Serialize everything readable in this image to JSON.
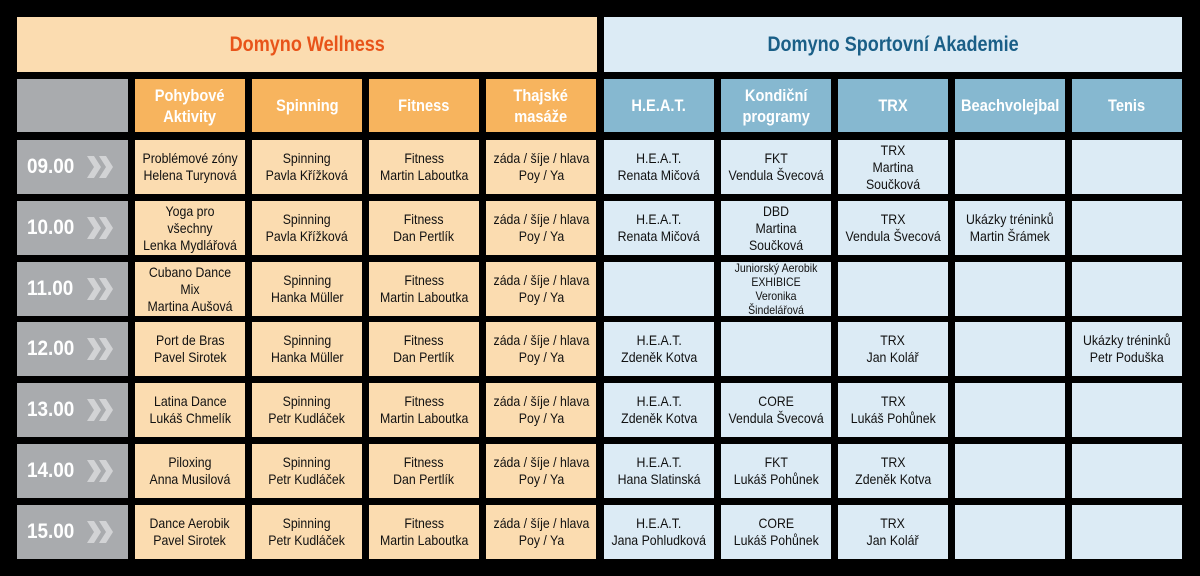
{
  "header": {
    "wellness": "Domyno Wellness",
    "akademie": "Domyno Sportovní Akademie"
  },
  "columns": [
    "Pohybové\nAktivity",
    "Spinning",
    "Fitness",
    "Thajské\nmasáže",
    "H.E.A.T.",
    "Kondiční\nprogramy",
    "TRX",
    "Beachvolejbal",
    "Tenis"
  ],
  "rows": [
    {
      "time": "09.00",
      "cells": [
        "Problémové zóny\nHelena Turynová",
        "Spinning\nPavla Křížková",
        "Fitness\nMartin Laboutka",
        "záda / šíje / hlava\nPoy / Ya",
        "H.E.A.T.\nRenata Mičová",
        "FKT\nVendula Švecová",
        "TRX\nMartina Součková",
        "",
        ""
      ]
    },
    {
      "time": "10.00",
      "cells": [
        "Yoga pro všechny\nLenka Mydlářová",
        "Spinning\nPavla Křížková",
        "Fitness\nDan Pertlík",
        "záda / šíje / hlava\nPoy / Ya",
        "H.E.A.T.\nRenata Mičová",
        "DBD\nMartina Součková",
        "TRX\nVendula Švecová",
        "Ukázky tréninků\nMartin Šrámek",
        ""
      ]
    },
    {
      "time": "11.00",
      "cells": [
        "Cubano Dance Mix\nMartina Aušová",
        "Spinning\nHanka Müller",
        "Fitness\nMartin Laboutka",
        "záda / šíje / hlava\nPoy / Ya",
        "",
        "Juniorský Aerobik\nEXHIBICE\nVeronika Šindelářová",
        "",
        "",
        ""
      ]
    },
    {
      "time": "12.00",
      "cells": [
        "Port de Bras\nPavel Sirotek",
        "Spinning\nHanka Müller",
        "Fitness\nDan Pertlík",
        "záda / šíje / hlava\nPoy / Ya",
        "H.E.A.T.\nZdeněk Kotva",
        "",
        "TRX\nJan Kolář",
        "",
        "Ukázky tréninků\nPetr Poduška"
      ]
    },
    {
      "time": "13.00",
      "cells": [
        "Latina Dance\nLukáš Chmelík",
        "Spinning\nPetr Kudláček",
        "Fitness\nMartin Laboutka",
        "záda / šíje / hlava\nPoy / Ya",
        "H.E.A.T.\nZdeněk Kotva",
        "CORE\nVendula Švecová",
        "TRX\nLukáš Pohůnek",
        "",
        ""
      ]
    },
    {
      "time": "14.00",
      "cells": [
        "Piloxing\nAnna Musilová",
        "Spinning\nPetr Kudláček",
        "Fitness\nDan Pertlík",
        "záda / šíje / hlava\nPoy / Ya",
        "H.E.A.T.\nHana Slatinská",
        "FKT\nLukáš Pohůnek",
        "TRX\nZdeněk Kotva",
        "",
        ""
      ]
    },
    {
      "time": "15.00",
      "cells": [
        "Dance Aerobik\nPavel Sirotek",
        "Spinning\nPetr Kudláček",
        "Fitness\nMartin Laboutka",
        "záda / šíje / hlava\nPoy / Ya",
        "H.E.A.T.\nJana Pohludková",
        "CORE\nLukáš Pohůnek",
        "TRX\nJan Kolář",
        "",
        ""
      ]
    }
  ],
  "colors": {
    "wellness_title": "#e8541a",
    "akademie_title": "#1a5f87",
    "wellness_header": "#f7b45e",
    "akademie_header": "#86b8d0",
    "wellness_cell": "#fbdcb0",
    "akademie_cell": "#dcebf5",
    "time_cell": "#a9abae"
  },
  "icons": {
    "time_arrow": "double-chevron-right-icon"
  }
}
